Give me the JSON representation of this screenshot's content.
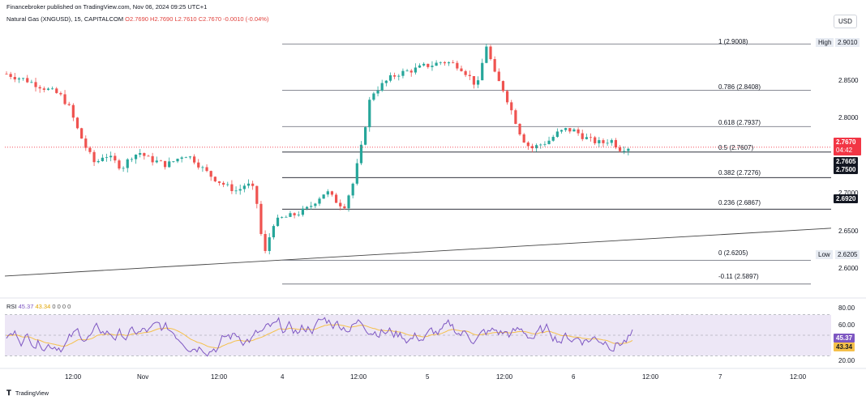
{
  "header": {
    "published": "Financebroker published on TradingView.com, Nov 06, 2024 09:25 UTC+1"
  },
  "legend": {
    "symbol": "Natural Gas (XNGUSD), 15, CAPITALCOM",
    "open": "O2.7690",
    "high": "H2.7690",
    "low": "L2.7610",
    "close": "C2.7670",
    "change": "-0.0010 (-0.04%)"
  },
  "currency_button": "USD",
  "price_axis": {
    "ticks": [
      "2.9010",
      "2.8500",
      "2.8000",
      "2.7500",
      "2.7000",
      "2.6500",
      "2.6205",
      "2.6000"
    ],
    "high_label": "High",
    "low_label": "Low",
    "high_value": "2.9010",
    "low_value": "2.6205",
    "current_price": "2.7670",
    "countdown": "04:42",
    "tag_2": "2.7605",
    "tag_3": "2.7500",
    "tag_4": "2.6920"
  },
  "fib_labels": {
    "l1": "1 (2.9008)",
    "l0786": "0.786 (2.8408)",
    "l0618": "0.618 (2.7937)",
    "l05": "0.5 (2.7607)",
    "l0382": "0.382 (2.7276)",
    "l0236": "0.236 (2.6867)",
    "l0": "0 (2.6205)",
    "lm011": "-0.11 (2.5897)"
  },
  "rsi": {
    "name": "RSI",
    "value": "45.37",
    "ma_value": "43.34",
    "extra": "0 0 0 0",
    "axis_ticks": [
      "80.00",
      "60.00",
      "20.00"
    ],
    "tag_value": "45.37",
    "tag_ma": "43.34"
  },
  "time_axis": [
    "12:00",
    "Nov",
    "12:00",
    "4",
    "12:00",
    "5",
    "12:00",
    "6",
    "12:00",
    "7",
    "12:00"
  ],
  "footer": "TradingView",
  "colors": {
    "up": "#26a69a",
    "down": "#ef5350",
    "rsi_line": "#7e57c2",
    "rsi_ma": "#f5c04a",
    "rsi_band": "#ede7f6",
    "price_tag": "#f23645",
    "black_tag": "#131722"
  },
  "chart_data": {
    "type": "candlestick",
    "symbol": "Natural Gas (XNGUSD)",
    "timeframe": "15",
    "ylim": [
      2.58,
      2.92
    ],
    "x_ticks": [
      "12:00",
      "Nov",
      "12:00",
      "4",
      "12:00",
      "5",
      "12:00",
      "6",
      "12:00",
      "7",
      "12:00"
    ],
    "fibonacci": [
      {
        "level": 1,
        "price": 2.9008
      },
      {
        "level": 0.786,
        "price": 2.8408
      },
      {
        "level": 0.618,
        "price": 2.7937
      },
      {
        "level": 0.5,
        "price": 2.7607
      },
      {
        "level": 0.382,
        "price": 2.7276
      },
      {
        "level": 0.236,
        "price": 2.6867
      },
      {
        "level": 0,
        "price": 2.6205
      },
      {
        "level": -0.11,
        "price": 2.5897
      }
    ],
    "trendline": {
      "from_price": 2.6,
      "to_price": 2.662
    },
    "close_path": [
      2.862,
      2.858,
      2.855,
      2.85,
      2.845,
      2.84,
      2.835,
      2.82,
      2.79,
      2.765,
      2.745,
      2.758,
      2.75,
      2.74,
      2.755,
      2.76,
      2.752,
      2.748,
      2.744,
      2.75,
      2.758,
      2.752,
      2.74,
      2.73,
      2.722,
      2.715,
      2.71,
      2.72,
      2.71,
      2.625,
      2.668,
      2.675,
      2.678,
      2.682,
      2.688,
      2.7,
      2.71,
      2.698,
      2.69,
      2.72,
      2.77,
      2.835,
      2.845,
      2.855,
      2.862,
      2.865,
      2.868,
      2.872,
      2.874,
      2.878,
      2.876,
      2.872,
      2.86,
      2.845,
      2.9,
      2.86,
      2.84,
      2.81,
      2.78,
      2.765,
      2.77,
      2.775,
      2.785,
      2.79,
      2.788,
      2.78,
      2.775,
      2.772,
      2.777,
      2.765,
      2.767
    ],
    "rsi_series": {
      "name": "RSI",
      "last": 45.37,
      "ma_last": 43.34,
      "ylim": [
        20,
        80
      ],
      "bands": [
        30,
        70
      ]
    }
  }
}
